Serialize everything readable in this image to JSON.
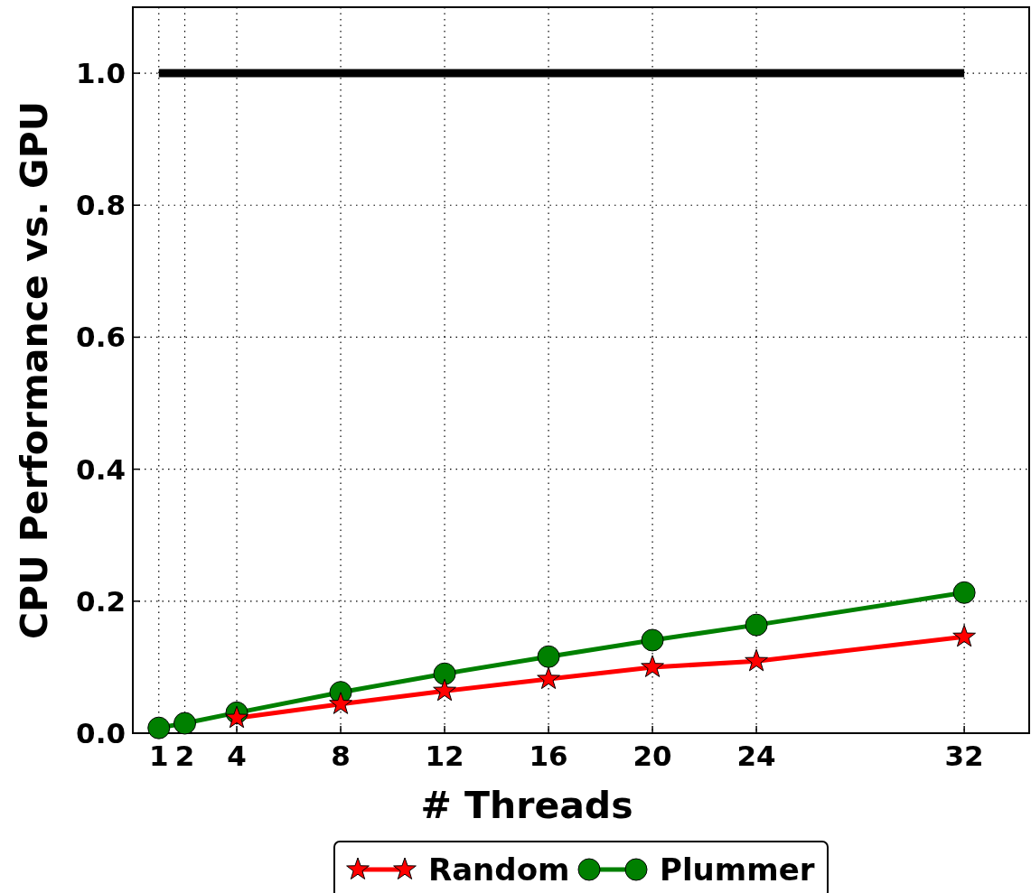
{
  "chart_data": {
    "type": "line",
    "xlabel": "# Threads",
    "ylabel": "CPU Performance vs. GPU",
    "x": [
      1,
      2,
      4,
      8,
      12,
      16,
      20,
      24,
      32
    ],
    "series": [
      {
        "name": "Random",
        "color": "#ff0000",
        "marker": "star",
        "values": [
          null,
          null,
          0.023,
          0.044,
          0.064,
          0.082,
          0.1,
          0.109,
          0.146
        ]
      },
      {
        "name": "Plummer",
        "color": "#008000",
        "marker": "circle",
        "values": [
          0.008,
          0.015,
          0.031,
          0.062,
          0.09,
          0.116,
          0.141,
          0.164,
          0.213
        ]
      },
      {
        "color": "#000000",
        "marker": "none",
        "x": [
          1,
          32
        ],
        "values": [
          1,
          1
        ]
      }
    ],
    "xlim": [
      0,
      34.5
    ],
    "xticks": [
      1,
      2,
      4,
      8,
      12,
      16,
      20,
      24,
      32
    ],
    "ylim": [
      0,
      1.1
    ],
    "yticks": [
      {
        "value": 0,
        "label": "0.0"
      },
      {
        "value": 0.2,
        "label": "0.2"
      },
      {
        "value": 0.4,
        "label": "0.4"
      },
      {
        "value": 0.6,
        "label": "0.6"
      },
      {
        "value": 0.8,
        "label": "0.8"
      },
      {
        "value": 1,
        "label": "1.0"
      }
    ],
    "grid": true,
    "legend": "bottom"
  }
}
